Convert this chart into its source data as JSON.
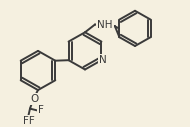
{
  "bg_color": "#f5f0e0",
  "line_color": "#3a3a3a",
  "line_width": 1.4,
  "font_size": 7.5,
  "atoms": {
    "N_label": "N",
    "H_label": "H",
    "O_label": "O",
    "F1_label": "F",
    "F2_label": "F",
    "F3_label": "FF"
  }
}
